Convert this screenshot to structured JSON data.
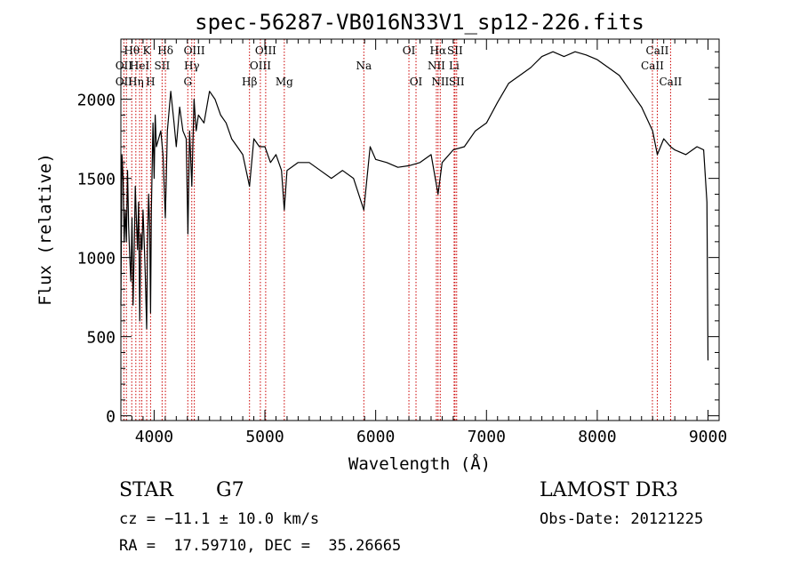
{
  "chart_data": {
    "type": "line",
    "title": "spec-56287-VB016N33V1_sp12-226.fits",
    "xlabel": "Wavelength (Å)",
    "ylabel": "Flux (relative)",
    "xlim": [
      3700,
      9100
    ],
    "ylim": [
      -30,
      2380
    ],
    "xticks": [
      4000,
      5000,
      6000,
      7000,
      8000,
      9000
    ],
    "yticks": [
      0,
      500,
      1000,
      1500,
      2000
    ],
    "grid": false,
    "series": [
      {
        "x": [
          3700,
          3710,
          3720,
          3730,
          3740,
          3750,
          3760,
          3770,
          3780,
          3790,
          3800,
          3810,
          3820,
          3830,
          3840,
          3850,
          3860,
          3870,
          3880,
          3890,
          3900,
          3910,
          3920,
          3933,
          3940,
          3950,
          3960,
          3968,
          3975,
          3990,
          4000,
          4010,
          4020,
          4040,
          4060,
          4080,
          4101,
          4120,
          4150,
          4180,
          4200,
          4230,
          4260,
          4290,
          4305,
          4320,
          4340,
          4360,
          4380,
          4400,
          4450,
          4500,
          4550,
          4600,
          4650,
          4700,
          4750,
          4800,
          4861,
          4900,
          4950,
          5000,
          5050,
          5100,
          5150,
          5175,
          5200,
          5300,
          5400,
          5500,
          5600,
          5700,
          5800,
          5893,
          5950,
          6000,
          6100,
          6200,
          6300,
          6400,
          6500,
          6563,
          6600,
          6700,
          6800,
          6900,
          7000,
          7100,
          7200,
          7300,
          7400,
          7500,
          7600,
          7700,
          7800,
          7900,
          8000,
          8100,
          8200,
          8300,
          8400,
          8500,
          8542,
          8600,
          8662,
          8700,
          8800,
          8900,
          8960,
          8990,
          9000
        ],
        "y": [
          700,
          1650,
          1500,
          1100,
          1300,
          1100,
          1550,
          1200,
          1000,
          850,
          1250,
          700,
          1050,
          1450,
          1250,
          1050,
          1350,
          600,
          1150,
          1050,
          1300,
          1100,
          900,
          550,
          1050,
          1400,
          1200,
          650,
          1300,
          1850,
          1500,
          1900,
          1700,
          1750,
          1800,
          1650,
          1250,
          1800,
          2050,
          1850,
          1700,
          1950,
          1800,
          1750,
          1150,
          1800,
          1450,
          2000,
          1800,
          1900,
          1850,
          2050,
          2000,
          1900,
          1850,
          1750,
          1700,
          1650,
          1450,
          1750,
          1700,
          1700,
          1600,
          1650,
          1550,
          1300,
          1550,
          1600,
          1600,
          1550,
          1500,
          1550,
          1500,
          1300,
          1700,
          1620,
          1600,
          1570,
          1580,
          1600,
          1650,
          1400,
          1600,
          1680,
          1700,
          1800,
          1850,
          1980,
          2100,
          2150,
          2200,
          2270,
          2300,
          2270,
          2300,
          2280,
          2250,
          2200,
          2150,
          2050,
          1950,
          1800,
          1650,
          1750,
          1700,
          1680,
          1650,
          1700,
          1680,
          1350,
          350
        ]
      }
    ],
    "lines": [
      {
        "x": 3727,
        "labels": [
          "OII"
        ]
      },
      {
        "x": 3750,
        "labels": [
          "OII"
        ]
      },
      {
        "x": 3798,
        "labels": [
          "Hθ",
          "Hη"
        ]
      },
      {
        "x": 3835,
        "labels": [
          "Hη"
        ]
      },
      {
        "x": 3869,
        "labels": [
          "HeI"
        ]
      },
      {
        "x": 3889,
        "labels": [
          "HeI"
        ]
      },
      {
        "x": 3933,
        "labels": [
          "K"
        ]
      },
      {
        "x": 3968,
        "labels": [
          "H"
        ]
      },
      {
        "x": 4072,
        "labels": [
          "SII"
        ]
      },
      {
        "x": 4102,
        "labels": [
          "Hδ"
        ]
      },
      {
        "x": 4304,
        "labels": [
          "G"
        ]
      },
      {
        "x": 4340,
        "labels": [
          "Hγ"
        ]
      },
      {
        "x": 4363,
        "labels": [
          "OIII"
        ]
      },
      {
        "x": 4861,
        "labels": [
          "Hβ"
        ]
      },
      {
        "x": 4959,
        "labels": [
          "OIII"
        ]
      },
      {
        "x": 5007,
        "labels": [
          "OIII"
        ]
      },
      {
        "x": 5175,
        "labels": [
          "Mg"
        ]
      },
      {
        "x": 5893,
        "labels": [
          "Na"
        ]
      },
      {
        "x": 6300,
        "labels": [
          "OI"
        ]
      },
      {
        "x": 6364,
        "labels": [
          "OI"
        ]
      },
      {
        "x": 6548,
        "labels": [
          "NII"
        ]
      },
      {
        "x": 6563,
        "labels": [
          "Hα"
        ]
      },
      {
        "x": 6583,
        "labels": [
          "NII"
        ]
      },
      {
        "x": 6708,
        "labels": [
          "Li"
        ]
      },
      {
        "x": 6716,
        "labels": [
          "SII"
        ]
      },
      {
        "x": 6731,
        "labels": [
          "SII"
        ]
      },
      {
        "x": 8498,
        "labels": [
          "CaII"
        ]
      },
      {
        "x": 8542,
        "labels": [
          "CaII"
        ]
      },
      {
        "x": 8662,
        "labels": [
          "CaII"
        ]
      }
    ],
    "line_labels": [
      {
        "text": "Hθ",
        "x": 3798,
        "row": 1
      },
      {
        "text": "K",
        "x": 3933,
        "row": 1
      },
      {
        "text": "Hδ",
        "x": 4102,
        "row": 1
      },
      {
        "text": "OIII",
        "x": 4363,
        "row": 1
      },
      {
        "text": "OIII",
        "x": 5007,
        "row": 1
      },
      {
        "text": "OI",
        "x": 6300,
        "row": 1
      },
      {
        "text": "Hα",
        "x": 6563,
        "row": 1
      },
      {
        "text": "SII",
        "x": 6716,
        "row": 1
      },
      {
        "text": "CaII",
        "x": 8542,
        "row": 1
      },
      {
        "text": "OII",
        "x": 3727,
        "row": 2
      },
      {
        "text": "HeI",
        "x": 3869,
        "row": 2
      },
      {
        "text": "SII",
        "x": 4072,
        "row": 2
      },
      {
        "text": "Hγ",
        "x": 4340,
        "row": 2
      },
      {
        "text": "OIII",
        "x": 4959,
        "row": 2
      },
      {
        "text": "Na",
        "x": 5893,
        "row": 2
      },
      {
        "text": "NII",
        "x": 6548,
        "row": 2
      },
      {
        "text": "Li",
        "x": 6708,
        "row": 2
      },
      {
        "text": "CaII",
        "x": 8498,
        "row": 2
      },
      {
        "text": "OII",
        "x": 3727,
        "row": 3
      },
      {
        "text": "Hη",
        "x": 3835,
        "row": 3
      },
      {
        "text": "H",
        "x": 3968,
        "row": 3
      },
      {
        "text": "G",
        "x": 4304,
        "row": 3
      },
      {
        "text": "Hβ",
        "x": 4861,
        "row": 3
      },
      {
        "text": "Mg",
        "x": 5175,
        "row": 3
      },
      {
        "text": "OI",
        "x": 6364,
        "row": 3
      },
      {
        "text": "NII",
        "x": 6583,
        "row": 3
      },
      {
        "text": "SII",
        "x": 6731,
        "row": 3
      },
      {
        "text": "CaII",
        "x": 8662,
        "row": 3
      }
    ],
    "colors": {
      "spectrum": "#000000",
      "lines": "#cc0000",
      "axes": "#000000"
    }
  },
  "info": {
    "object_class": "STAR",
    "subclass": "G7",
    "survey": "LAMOST DR3",
    "cz": "cz = −11.1 ± 10.0 km/s",
    "obs_date": "Obs-Date: 20121225",
    "coords": "RA =  17.59710, DEC =  35.26665"
  }
}
